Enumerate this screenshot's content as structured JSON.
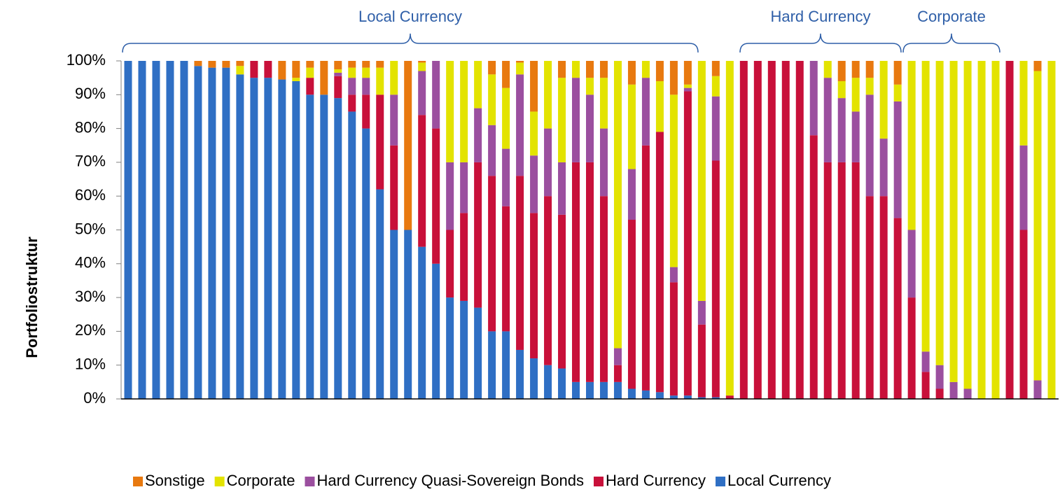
{
  "chart_data": {
    "type": "stacked_bar",
    "y_label": "Portfoliostruktur",
    "annotations": [
      "Local Currency",
      "Hard Currency",
      "Corporate"
    ],
    "ylim": [
      0,
      100
    ],
    "yticks": [
      {
        "value": 0,
        "label": "0%"
      },
      {
        "value": 10,
        "label": "10%"
      },
      {
        "value": 20,
        "label": "20%"
      },
      {
        "value": 30,
        "label": "30%"
      },
      {
        "value": 40,
        "label": "40%"
      },
      {
        "value": 50,
        "label": "50%"
      },
      {
        "value": 60,
        "label": "60%"
      },
      {
        "value": 70,
        "label": "70%"
      },
      {
        "value": 80,
        "label": "80%"
      },
      {
        "value": 90,
        "label": "90%"
      },
      {
        "value": 100,
        "label": "100%"
      }
    ],
    "legend": "bottom",
    "series": [
      {
        "name": "Sonstige",
        "color": "#e8790f",
        "values": [
          0,
          0,
          0,
          0,
          0,
          1.5,
          2,
          2,
          1.5,
          0,
          0,
          5.5,
          5,
          2,
          10,
          2.5,
          2,
          2,
          2,
          0,
          50,
          0.5,
          0,
          0,
          0,
          0,
          4,
          8,
          0.5,
          15,
          0,
          5,
          0,
          5,
          5,
          0,
          7,
          0,
          6,
          10,
          7,
          0,
          4.5,
          0,
          0,
          0,
          0,
          0,
          0,
          0,
          0,
          6,
          5,
          5,
          0,
          7,
          0,
          0,
          0,
          0,
          0,
          0,
          0,
          0,
          0,
          3,
          0
        ]
      },
      {
        "name": "Corporate",
        "color": "#e3e300",
        "values": [
          0,
          0,
          0,
          0,
          0,
          0,
          0,
          0,
          2.5,
          0,
          0,
          0,
          1,
          3,
          0,
          1,
          3,
          3,
          8,
          10,
          0,
          2.5,
          0,
          30,
          30,
          14,
          15,
          18,
          3.5,
          13,
          20,
          25,
          5,
          5,
          15,
          85,
          25,
          5,
          15,
          51,
          1,
          71,
          6,
          99,
          0,
          0,
          0,
          0,
          0,
          0,
          5,
          5,
          10,
          5,
          23,
          5,
          50,
          86,
          90,
          95,
          97,
          100,
          100,
          0,
          25,
          91.5,
          100
        ]
      },
      {
        "name": "Hard Currency Quasi-Sovereign Bonds",
        "color": "#9b4f9f",
        "values": [
          0,
          0,
          0,
          0,
          0,
          0,
          0,
          0,
          0,
          0,
          0,
          0,
          0,
          0,
          0,
          1,
          5,
          5,
          0,
          15,
          0,
          13,
          20,
          20,
          15,
          16,
          15,
          17,
          30,
          17,
          20,
          15.5,
          25,
          20,
          20,
          5,
          15,
          20,
          0,
          4.5,
          1,
          7,
          19,
          0,
          0,
          0,
          0,
          0,
          0,
          22,
          25,
          19,
          15,
          30,
          17,
          34.5,
          20,
          6,
          7,
          5,
          3,
          0,
          0,
          0,
          25,
          5.5,
          0
        ]
      },
      {
        "name": "Hard Currency",
        "color": "#c8103a",
        "values": [
          0,
          0,
          0,
          0,
          0,
          0,
          0,
          0,
          0,
          5,
          5,
          0,
          0,
          5,
          0,
          6.5,
          5,
          10,
          28,
          25,
          0,
          39,
          40,
          20,
          26,
          43,
          46,
          37,
          51.5,
          43,
          50,
          45.5,
          65,
          65,
          55,
          5,
          50,
          72.5,
          77,
          33.5,
          90,
          21.5,
          70,
          1,
          100,
          100,
          100,
          100,
          100,
          78,
          70,
          70,
          70,
          60,
          60,
          53.5,
          30,
          8,
          3,
          0,
          0,
          0,
          0,
          100,
          50,
          0,
          0
        ]
      },
      {
        "name": "Local Currency",
        "color": "#2f6fc4",
        "values": [
          100,
          100,
          100,
          100,
          100,
          98.5,
          98,
          98,
          96,
          95,
          95,
          94.5,
          94,
          90,
          90,
          89,
          85,
          80,
          62,
          50,
          50,
          45,
          40,
          30,
          29,
          27,
          20,
          20,
          14.5,
          12,
          10,
          9,
          5,
          5,
          5,
          5,
          3,
          2.5,
          2,
          1,
          1,
          0.5,
          0.5,
          0,
          0,
          0,
          0,
          0,
          0,
          0,
          0,
          0,
          0,
          0,
          0,
          0,
          0,
          0,
          0,
          0,
          0,
          0,
          0,
          0,
          0,
          0,
          0
        ]
      }
    ]
  }
}
